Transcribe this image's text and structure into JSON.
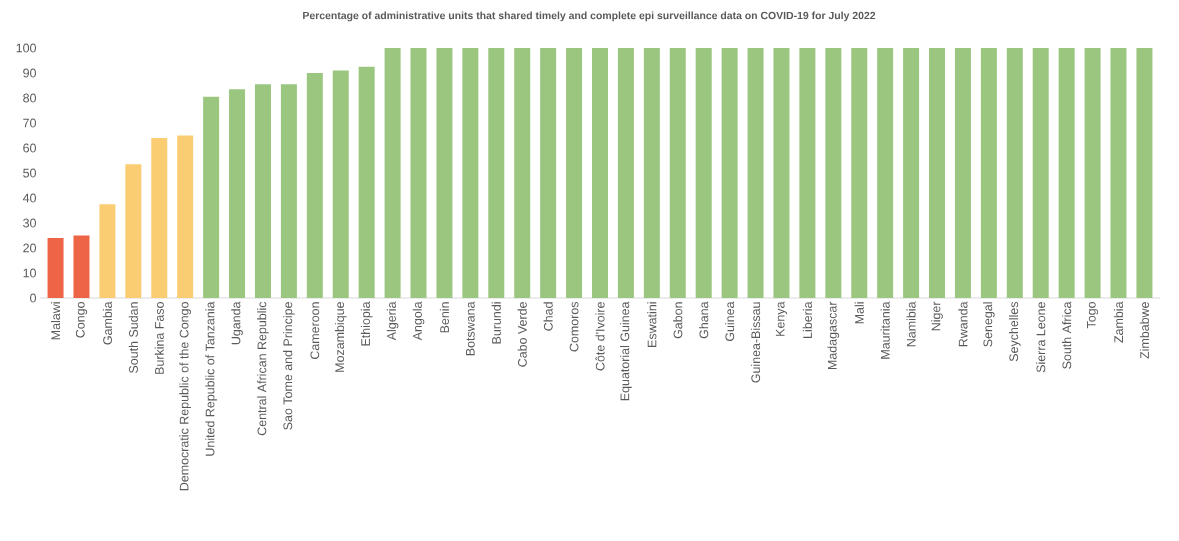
{
  "chart_data": {
    "type": "bar",
    "title": "Percentage of administrative units that shared timely and complete epi surveillance data on COVID-19 for July 2022",
    "categories": [
      "Malawi",
      "Congo",
      "Gambia",
      "South Sudan",
      "Burkina Faso",
      "Democratic Republic of the Congo",
      "United Republic of Tanzania",
      "Uganda",
      "Central African Republic",
      "Sao Tome and Principe",
      "Cameroon",
      "Mozambique",
      "Ethiopia",
      "Algeria",
      "Angola",
      "Benin",
      "Botswana",
      "Burundi",
      "Cabo Verde",
      "Chad",
      "Comoros",
      "Côte d'Ivoire",
      "Equatorial Guinea",
      "Eswatini",
      "Gabon",
      "Ghana",
      "Guinea",
      "Guinea-Bissau",
      "Kenya",
      "Liberia",
      "Madagascar",
      "Mali",
      "Mauritania",
      "Namibia",
      "Niger",
      "Rwanda",
      "Senegal",
      "Seychelles",
      "Sierra Leone",
      "South Africa",
      "Togo",
      "Zambia",
      "Zimbabwe"
    ],
    "values": [
      24,
      25,
      37.5,
      53.5,
      64,
      65,
      80.5,
      83.5,
      85.5,
      85.5,
      90,
      91,
      92.5,
      100,
      100,
      100,
      100,
      100,
      100,
      100,
      100,
      100,
      100,
      100,
      100,
      100,
      100,
      100,
      100,
      100,
      100,
      100,
      100,
      100,
      100,
      100,
      100,
      100,
      100,
      100,
      100,
      100,
      100
    ],
    "colors": [
      "#ed6447",
      "#ed6447",
      "#fbcd72",
      "#fbcd72",
      "#fbcd72",
      "#fbcd72",
      "#9ac67f",
      "#9ac67f",
      "#9ac67f",
      "#9ac67f",
      "#9ac67f",
      "#9ac67f",
      "#9ac67f",
      "#9ac67f",
      "#9ac67f",
      "#9ac67f",
      "#9ac67f",
      "#9ac67f",
      "#9ac67f",
      "#9ac67f",
      "#9ac67f",
      "#9ac67f",
      "#9ac67f",
      "#9ac67f",
      "#9ac67f",
      "#9ac67f",
      "#9ac67f",
      "#9ac67f",
      "#9ac67f",
      "#9ac67f",
      "#9ac67f",
      "#9ac67f",
      "#9ac67f",
      "#9ac67f",
      "#9ac67f",
      "#9ac67f",
      "#9ac67f",
      "#9ac67f",
      "#9ac67f",
      "#9ac67f",
      "#9ac67f",
      "#9ac67f",
      "#9ac67f"
    ],
    "ylim": [
      0,
      100
    ],
    "yticks": [
      0,
      10,
      20,
      30,
      40,
      50,
      60,
      70,
      80,
      90,
      100
    ]
  }
}
